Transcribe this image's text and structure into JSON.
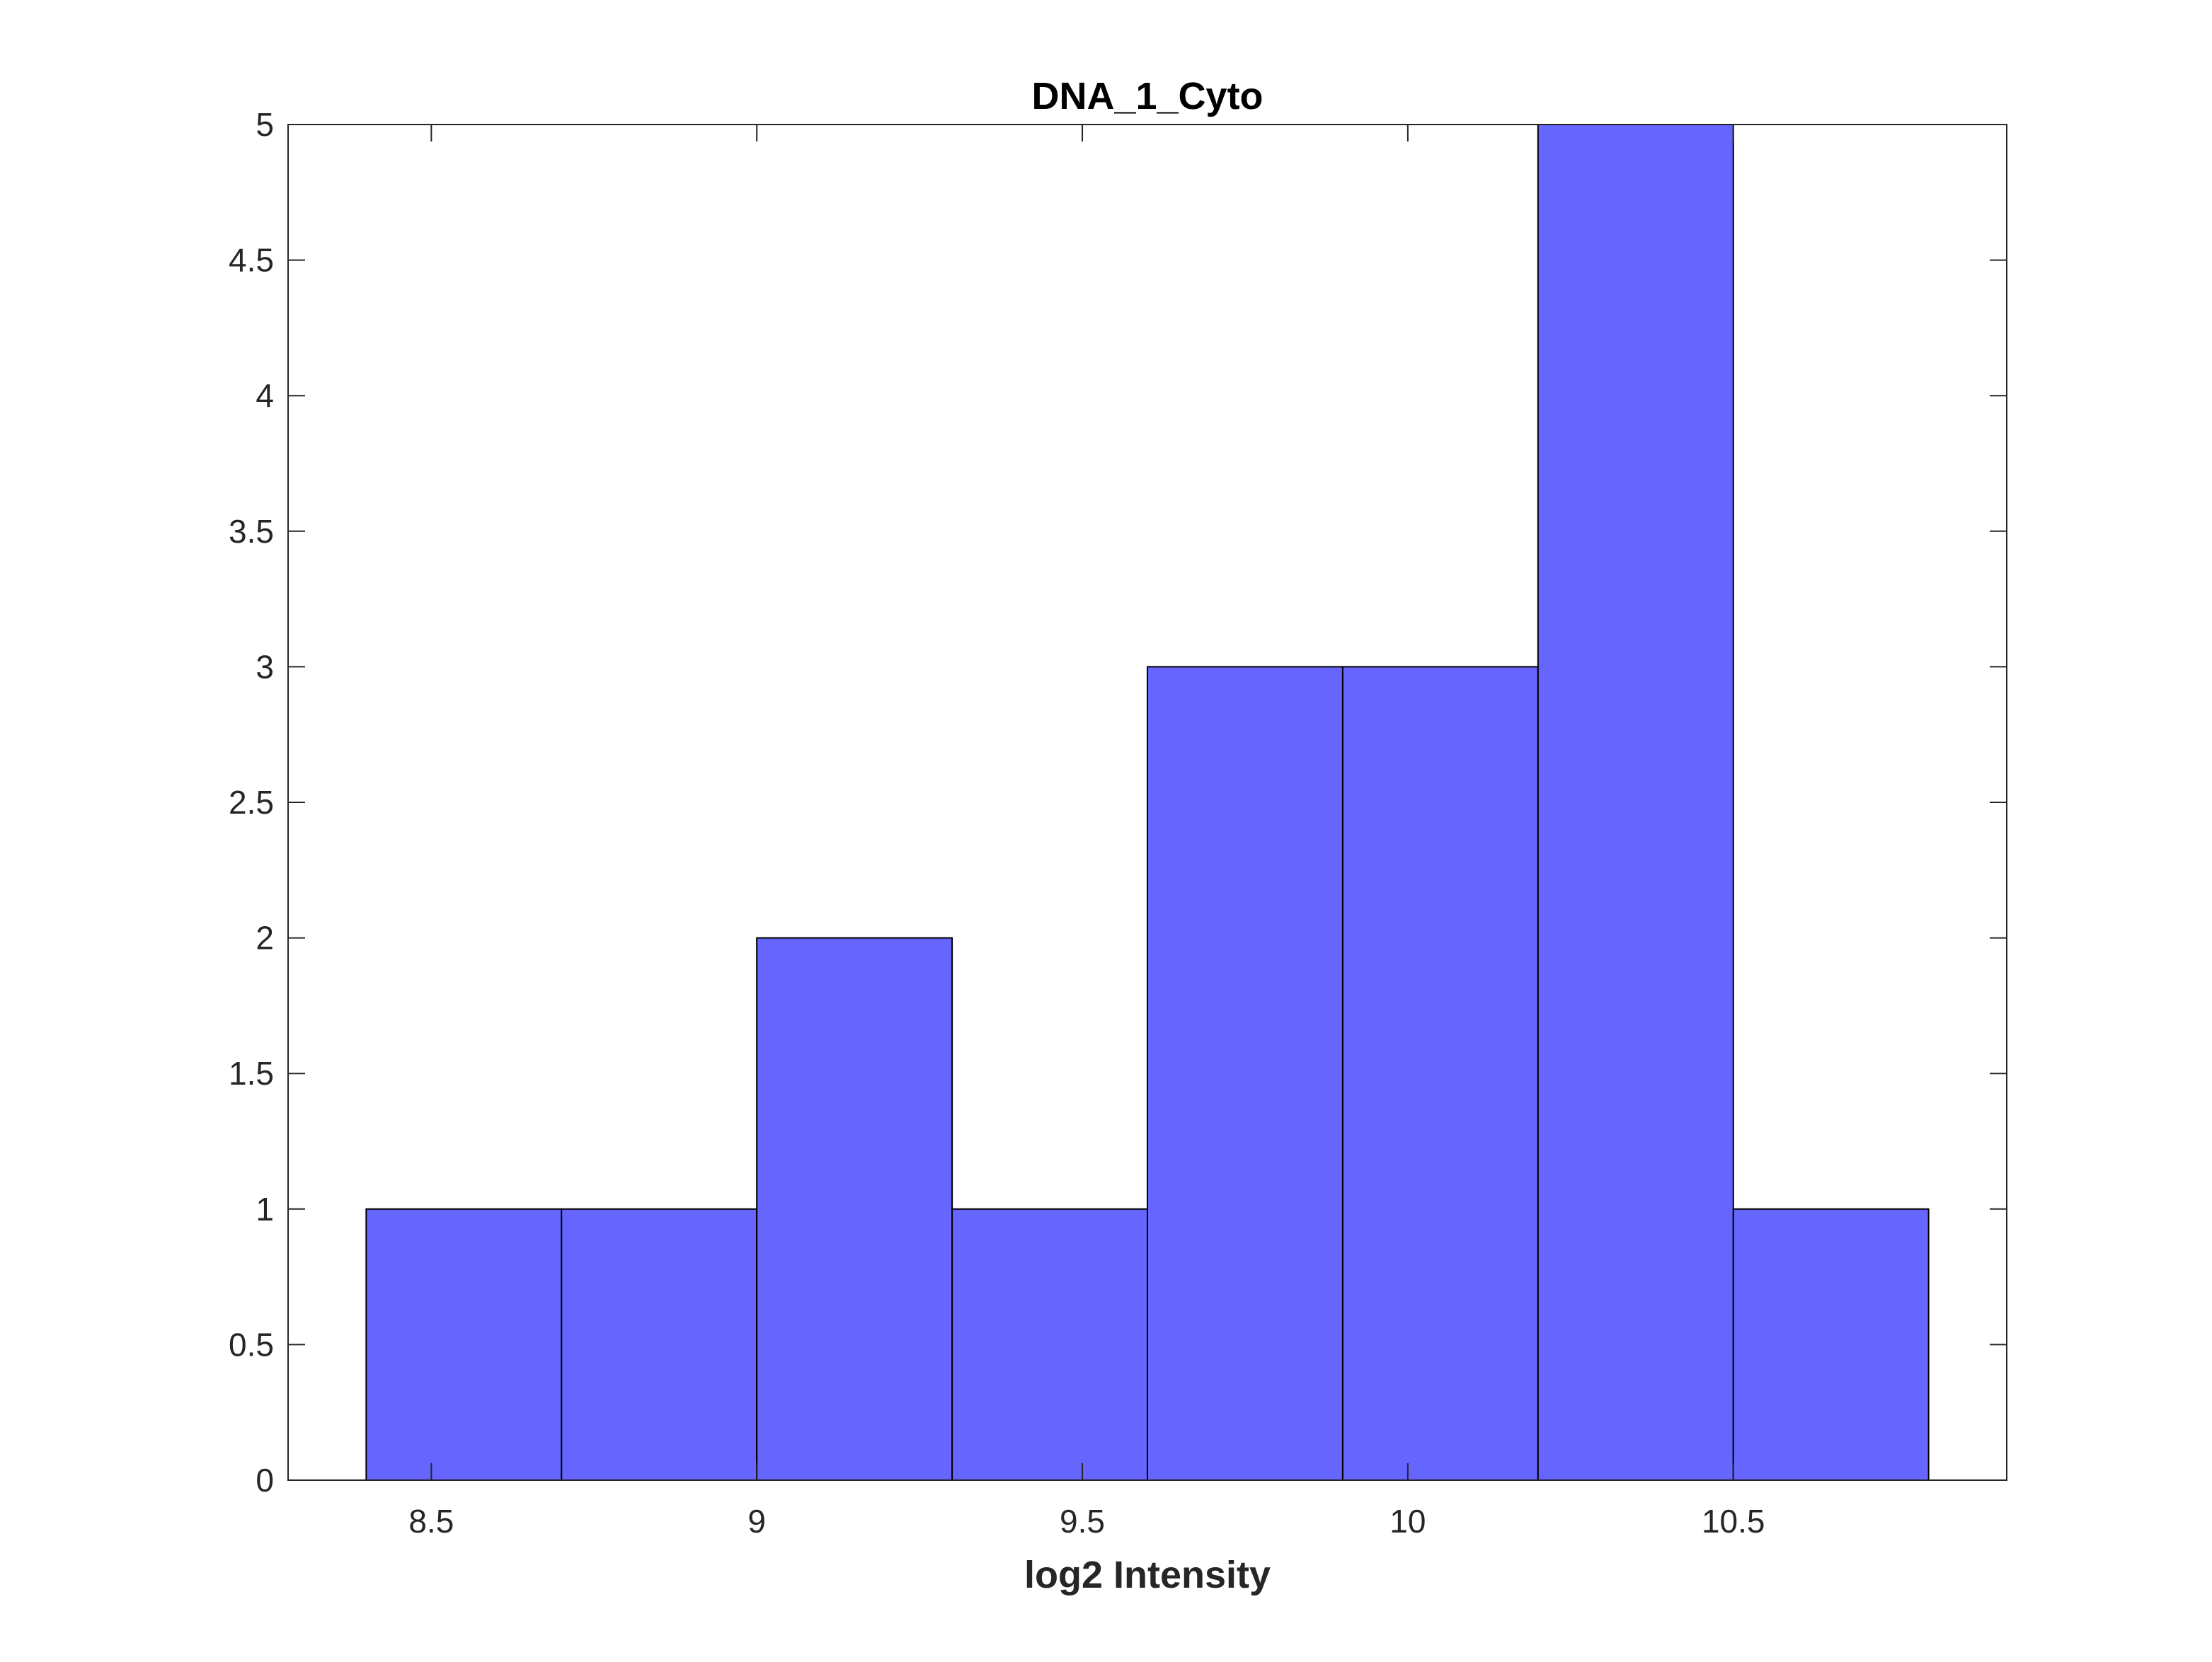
{
  "chart_data": {
    "type": "bar",
    "title": "DNA_1_Cyto",
    "xlabel": "log2 Intensity",
    "ylabel": "",
    "xlim": [
      8.28,
      10.92
    ],
    "ylim": [
      0,
      5
    ],
    "x_ticks": [
      8.5,
      9,
      9.5,
      10,
      10.5
    ],
    "x_tick_labels": [
      "8.5",
      "9",
      "9.5",
      "10",
      "10.5"
    ],
    "y_ticks": [
      0,
      0.5,
      1,
      1.5,
      2,
      2.5,
      3,
      3.5,
      4,
      4.5,
      5
    ],
    "y_tick_labels": [
      "0",
      "0.5",
      "1",
      "1.5",
      "2",
      "2.5",
      "3",
      "3.5",
      "4",
      "4.5",
      "5"
    ],
    "bin_edges": [
      8.4,
      8.7,
      9.0,
      9.3,
      9.6,
      9.9,
      10.2,
      10.5,
      10.8
    ],
    "values": [
      1,
      1,
      2,
      1,
      3,
      3,
      5,
      1
    ],
    "bar_color": "#6666ff",
    "edge_color": "#000000",
    "grid": false,
    "legend": "none"
  }
}
